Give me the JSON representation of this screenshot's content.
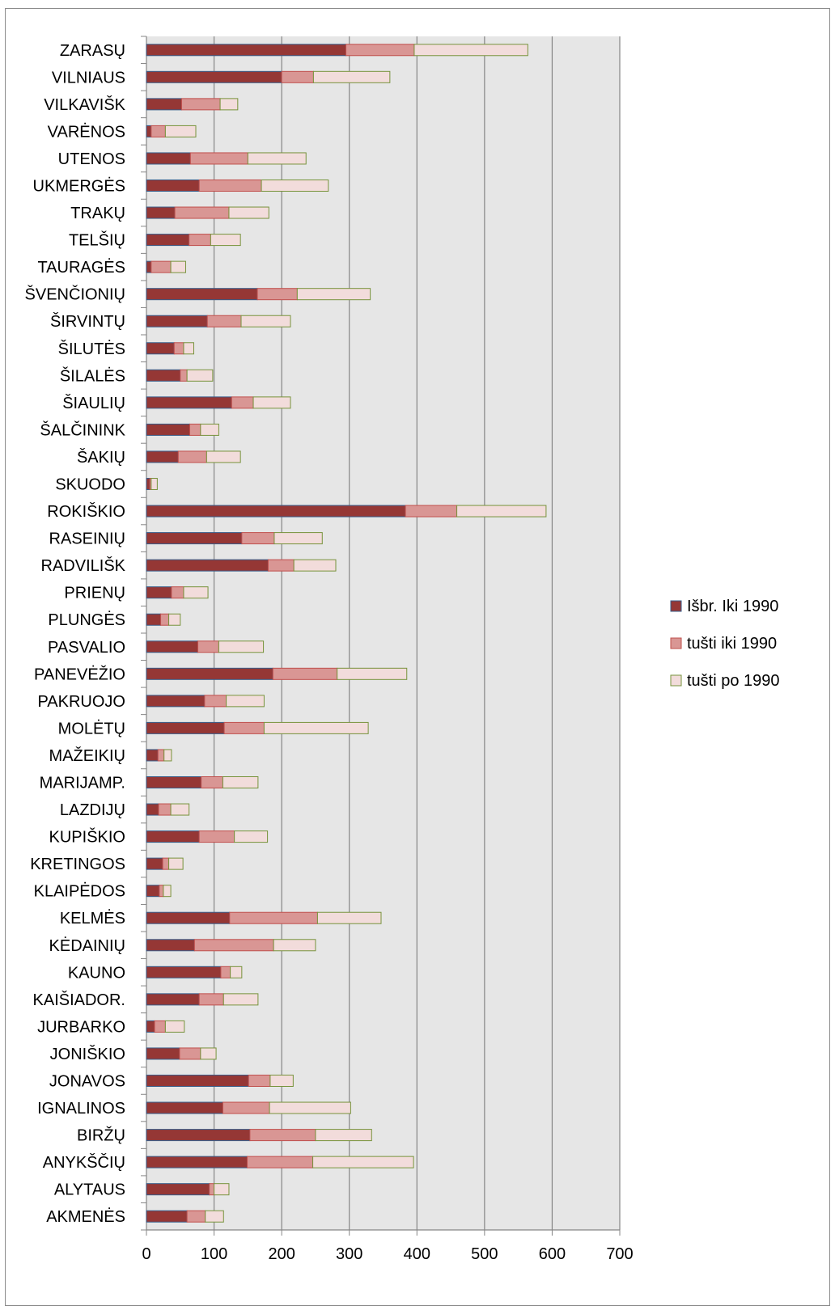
{
  "chart_data": {
    "type": "bar",
    "orientation": "horizontal",
    "stacked": true,
    "categories": [
      "ZARASŲ",
      "VILNIAUS",
      "VILKAVIŠK",
      "VARĖNOS",
      "UTENOS",
      "UKMERGĖS",
      "TRAKŲ",
      "TELŠIŲ",
      "TAURAGĖS",
      "ŠVENČIONIŲ",
      "ŠIRVINTŲ",
      "ŠILUTĖS",
      "ŠILALĖS",
      "ŠIAULIŲ",
      "ŠALČININK",
      "ŠAKIŲ",
      "SKUODO",
      "ROKIŠKIO",
      "RASEINIŲ",
      "RADVILIŠK",
      "PRIENŲ",
      "PLUNGĖS",
      "PASVALIO",
      "PANEVĖŽIO",
      "PAKRUOJO",
      "MOLĖTŲ",
      "MAŽEIKIŲ",
      "MARIJAMP.",
      "LAZDIJŲ",
      "KUPIŠKIO",
      "KRETINGOS",
      "KLAIPĖDOS",
      "KELMĖS",
      "KĖDAINIŲ",
      "KAUNO",
      "KAIŠIADOR.",
      "JURBARKO",
      "JONIŠKIO",
      "JONAVOS",
      "IGNALINOS",
      "BIRŽŲ",
      "ANYKŠČIŲ",
      "ALYTAUS",
      "AKMENĖS"
    ],
    "series": [
      {
        "name": "Išbr. Iki 1990",
        "color": "#953735",
        "border": "#385d8a",
        "values": [
          295,
          200,
          52,
          7,
          65,
          78,
          42,
          63,
          7,
          164,
          90,
          41,
          50,
          126,
          64,
          47,
          5,
          383,
          141,
          180,
          37,
          21,
          76,
          187,
          86,
          115,
          17,
          81,
          18,
          78,
          24,
          19,
          123,
          71,
          110,
          78,
          12,
          49,
          151,
          113,
          153,
          149,
          93,
          60
        ]
      },
      {
        "name": "tušti iki 1990",
        "color": "#d99694",
        "border": "#c0504d",
        "values": [
          101,
          47,
          57,
          21,
          85,
          92,
          80,
          32,
          29,
          59,
          50,
          14,
          10,
          32,
          16,
          42,
          2,
          76,
          48,
          38,
          18,
          12,
          31,
          95,
          32,
          59,
          9,
          32,
          18,
          52,
          9,
          6,
          130,
          117,
          14,
          36,
          16,
          31,
          32,
          69,
          97,
          97,
          7,
          27
        ]
      },
      {
        "name": "tušti po 1990",
        "color": "#f2dcdb",
        "border": "#77933c",
        "values": [
          168,
          113,
          26,
          45,
          86,
          99,
          59,
          44,
          22,
          108,
          73,
          15,
          38,
          55,
          27,
          50,
          9,
          132,
          71,
          62,
          36,
          17,
          66,
          103,
          56,
          154,
          11,
          52,
          27,
          49,
          21,
          11,
          94,
          62,
          17,
          51,
          28,
          23,
          34,
          120,
          83,
          149,
          22,
          27
        ]
      }
    ],
    "xlim": [
      0,
      700
    ],
    "xticks": [
      0,
      100,
      200,
      300,
      400,
      500,
      600,
      700
    ],
    "grid": "vertical",
    "plot_background": "#e6e6e6",
    "legend_position": "right"
  }
}
